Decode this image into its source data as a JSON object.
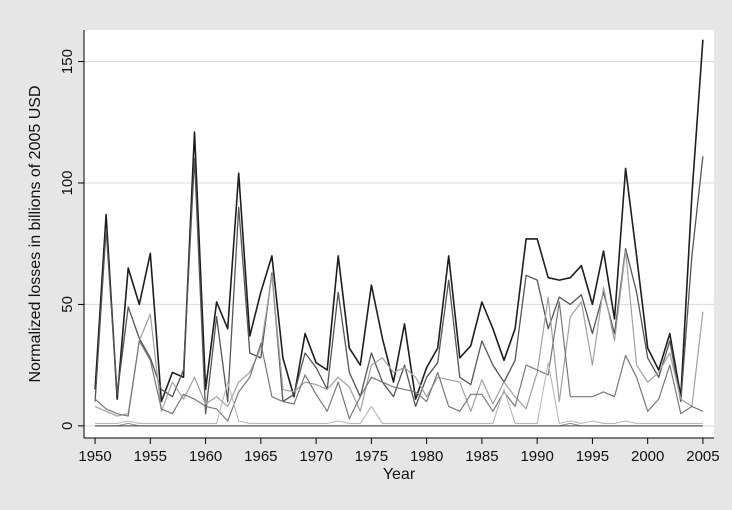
{
  "chart_data": {
    "type": "line",
    "title": "",
    "xlabel": "Year",
    "ylabel": "Normalized losses in billions of 2005 USD",
    "xlim": [
      1949,
      2006
    ],
    "ylim": [
      -5,
      163
    ],
    "x_ticks": [
      1950,
      1955,
      1960,
      1965,
      1970,
      1975,
      1980,
      1985,
      1990,
      1995,
      2000,
      2005
    ],
    "y_ticks": [
      0,
      50,
      100,
      150
    ],
    "grid": "horizontal",
    "legend": "none",
    "colors": {
      "outer_background": "#e6e6e6",
      "plot_background": "#ffffff",
      "gridline": "#d9d9d9",
      "axis": "#000000"
    },
    "x": [
      1950,
      1951,
      1952,
      1953,
      1954,
      1955,
      1956,
      1957,
      1958,
      1959,
      1960,
      1961,
      1962,
      1963,
      1964,
      1965,
      1966,
      1967,
      1968,
      1969,
      1970,
      1971,
      1972,
      1973,
      1974,
      1975,
      1976,
      1977,
      1978,
      1979,
      1980,
      1981,
      1982,
      1983,
      1984,
      1985,
      1986,
      1987,
      1988,
      1989,
      1990,
      1991,
      1992,
      1993,
      1994,
      1995,
      1996,
      1997,
      1998,
      1999,
      2000,
      2001,
      2002,
      2003,
      2004,
      2005
    ],
    "series": [
      {
        "color": "#1e1e1e",
        "width": 1.6,
        "values": [
          15,
          87,
          11,
          65,
          50,
          71,
          10,
          22,
          20,
          121,
          15,
          51,
          40,
          104,
          37,
          55,
          70,
          28,
          12,
          38,
          26,
          23,
          70,
          32,
          25,
          58,
          36,
          18,
          42,
          11,
          24,
          32,
          70,
          28,
          33,
          51,
          40,
          27,
          40,
          77,
          77,
          61,
          60,
          61,
          66,
          50,
          72,
          44,
          106,
          70,
          32,
          23,
          38,
          12,
          95,
          159
        ]
      },
      {
        "color": "#555555",
        "width": 1.3,
        "values": [
          10,
          81,
          13,
          49,
          36,
          28,
          15,
          12,
          23,
          110,
          5,
          45,
          10,
          90,
          30,
          28,
          63,
          10,
          13,
          30,
          24,
          15,
          55,
          22,
          12,
          30,
          18,
          12,
          25,
          8,
          20,
          26,
          60,
          20,
          17,
          35,
          25,
          18,
          27,
          62,
          60,
          40,
          53,
          50,
          54,
          38,
          55,
          38,
          73,
          55,
          28,
          20,
          35,
          10,
          70,
          111
        ]
      },
      {
        "color": "#a0a0a0",
        "width": 1.2,
        "values": [
          8,
          6,
          4,
          5,
          35,
          46,
          6,
          18,
          11,
          20,
          9,
          12,
          8,
          18,
          22,
          32,
          62,
          15,
          14,
          18,
          17,
          15,
          20,
          16,
          6,
          25,
          28,
          22,
          24,
          20,
          12,
          20,
          19,
          18,
          6,
          19,
          9,
          18,
          12,
          7,
          22,
          53,
          10,
          45,
          51,
          25,
          57,
          35,
          72,
          25,
          18,
          22,
          30,
          11,
          8,
          47
        ]
      },
      {
        "color": "#787878",
        "width": 1.2,
        "values": [
          11,
          7,
          5,
          4,
          35,
          27,
          7,
          5,
          13,
          11,
          8,
          7,
          2,
          14,
          20,
          34,
          12,
          10,
          9,
          21,
          13,
          6,
          18,
          3,
          12,
          20,
          18,
          16,
          15,
          14,
          10,
          22,
          8,
          6,
          13,
          13,
          6,
          14,
          8,
          25,
          23,
          21,
          51,
          12,
          12,
          12,
          14,
          12,
          29,
          20,
          6,
          11,
          25,
          5,
          8,
          6
        ]
      },
      {
        "color": "#b8b8b8",
        "width": 1.1,
        "values": [
          1,
          1,
          1,
          2,
          1,
          1,
          1,
          1,
          1,
          1,
          1,
          1,
          18,
          2,
          1,
          1,
          1,
          1,
          1,
          1,
          1,
          1,
          2,
          1,
          1,
          8,
          1,
          1,
          1,
          1,
          1,
          1,
          1,
          1,
          1,
          1,
          1,
          15,
          1,
          1,
          1,
          26,
          1,
          2,
          1,
          2,
          1,
          1,
          2,
          1,
          1,
          1,
          1,
          1,
          1,
          1
        ]
      },
      {
        "color": "#8c8c8c",
        "width": 1.1,
        "values": [
          0,
          0,
          0,
          1,
          0,
          0,
          0,
          0,
          0,
          0,
          0,
          0,
          0,
          0,
          0,
          0,
          0,
          0,
          0,
          0,
          0,
          0,
          0,
          0,
          0,
          0,
          0,
          0,
          0,
          0,
          0,
          0,
          0,
          0,
          0,
          0,
          0,
          0,
          0,
          0,
          0,
          0,
          0,
          1,
          0,
          0,
          0,
          0,
          0,
          0,
          0,
          0,
          0,
          0,
          0,
          0
        ]
      },
      {
        "color": "#444444",
        "width": 1.0,
        "values": [
          0,
          0,
          0,
          0,
          0,
          0,
          0,
          0,
          0,
          0,
          0,
          0,
          0,
          0,
          0,
          0,
          0,
          0,
          0,
          0,
          0,
          0,
          0,
          0,
          0,
          0,
          0,
          0,
          0,
          0,
          0,
          0,
          0,
          0,
          0,
          0,
          0,
          0,
          0,
          0,
          0,
          0,
          0,
          0,
          0,
          0,
          0,
          0,
          0,
          0,
          0,
          0,
          0,
          0,
          0,
          0
        ]
      }
    ]
  }
}
